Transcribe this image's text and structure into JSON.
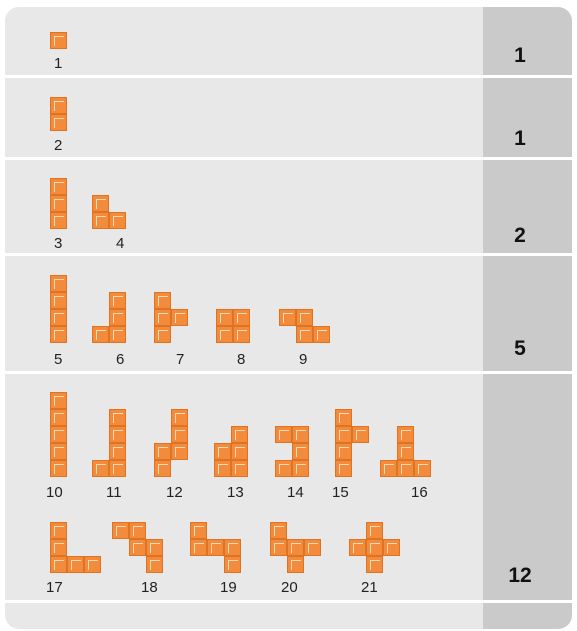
{
  "rows": [
    {
      "count": "1",
      "pieces": [
        "1"
      ]
    },
    {
      "count": "1",
      "pieces": [
        "2"
      ]
    },
    {
      "count": "2",
      "pieces": [
        "3",
        "4"
      ]
    },
    {
      "count": "5",
      "pieces": [
        "5",
        "6",
        "7",
        "8",
        "9"
      ]
    },
    {
      "count": "12",
      "pieces": [
        "10",
        "11",
        "12",
        "13",
        "14",
        "15",
        "16",
        "17",
        "18",
        "19",
        "20",
        "21"
      ]
    },
    {
      "count": "",
      "pieces": []
    }
  ],
  "pieces": [
    {
      "label": "1",
      "cells": [
        [
          0,
          0
        ]
      ]
    },
    {
      "label": "2",
      "cells": [
        [
          0,
          0
        ],
        [
          0,
          1
        ]
      ]
    },
    {
      "label": "3",
      "cells": [
        [
          0,
          0
        ],
        [
          0,
          1
        ],
        [
          0,
          2
        ]
      ]
    },
    {
      "label": "4",
      "cells": [
        [
          0,
          0
        ],
        [
          0,
          1
        ],
        [
          1,
          1
        ]
      ]
    },
    {
      "label": "5",
      "cells": [
        [
          0,
          0
        ],
        [
          0,
          1
        ],
        [
          0,
          2
        ],
        [
          0,
          3
        ]
      ]
    },
    {
      "label": "6",
      "cells": [
        [
          1,
          0
        ],
        [
          1,
          1
        ],
        [
          1,
          2
        ],
        [
          0,
          2
        ]
      ]
    },
    {
      "label": "7",
      "cells": [
        [
          0,
          0
        ],
        [
          0,
          1
        ],
        [
          0,
          2
        ],
        [
          1,
          1
        ]
      ]
    },
    {
      "label": "8",
      "cells": [
        [
          0,
          0
        ],
        [
          1,
          0
        ],
        [
          0,
          1
        ],
        [
          1,
          1
        ]
      ]
    },
    {
      "label": "9",
      "cells": [
        [
          0,
          0
        ],
        [
          1,
          0
        ],
        [
          1,
          1
        ],
        [
          2,
          1
        ]
      ]
    },
    {
      "label": "10",
      "cells": [
        [
          0,
          0
        ],
        [
          0,
          1
        ],
        [
          0,
          2
        ],
        [
          0,
          3
        ],
        [
          0,
          4
        ]
      ]
    },
    {
      "label": "11",
      "cells": [
        [
          1,
          0
        ],
        [
          1,
          1
        ],
        [
          1,
          2
        ],
        [
          1,
          3
        ],
        [
          0,
          3
        ]
      ]
    },
    {
      "label": "12",
      "cells": [
        [
          1,
          0
        ],
        [
          1,
          1
        ],
        [
          1,
          2
        ],
        [
          0,
          2
        ],
        [
          0,
          3
        ]
      ]
    },
    {
      "label": "13",
      "cells": [
        [
          1,
          0
        ],
        [
          1,
          1
        ],
        [
          0,
          1
        ],
        [
          1,
          2
        ],
        [
          0,
          2
        ]
      ]
    },
    {
      "label": "14",
      "cells": [
        [
          0,
          0
        ],
        [
          1,
          0
        ],
        [
          1,
          1
        ],
        [
          1,
          2
        ],
        [
          0,
          2
        ]
      ]
    },
    {
      "label": "15",
      "cells": [
        [
          0,
          0
        ],
        [
          0,
          1
        ],
        [
          1,
          1
        ],
        [
          0,
          2
        ],
        [
          0,
          3
        ]
      ]
    },
    {
      "label": "16",
      "cells": [
        [
          1,
          0
        ],
        [
          1,
          1
        ],
        [
          0,
          2
        ],
        [
          1,
          2
        ],
        [
          2,
          2
        ]
      ]
    },
    {
      "label": "17",
      "cells": [
        [
          0,
          0
        ],
        [
          0,
          1
        ],
        [
          0,
          2
        ],
        [
          1,
          2
        ],
        [
          2,
          2
        ]
      ]
    },
    {
      "label": "18",
      "cells": [
        [
          0,
          0
        ],
        [
          1,
          0
        ],
        [
          1,
          1
        ],
        [
          2,
          1
        ],
        [
          2,
          2
        ]
      ]
    },
    {
      "label": "19",
      "cells": [
        [
          0,
          0
        ],
        [
          0,
          1
        ],
        [
          1,
          1
        ],
        [
          2,
          1
        ],
        [
          2,
          2
        ]
      ]
    },
    {
      "label": "20",
      "cells": [
        [
          0,
          0
        ],
        [
          0,
          1
        ],
        [
          1,
          1
        ],
        [
          2,
          1
        ],
        [
          1,
          2
        ]
      ]
    },
    {
      "label": "21",
      "cells": [
        [
          1,
          0
        ],
        [
          0,
          1
        ],
        [
          1,
          1
        ],
        [
          2,
          1
        ],
        [
          1,
          2
        ]
      ]
    }
  ]
}
